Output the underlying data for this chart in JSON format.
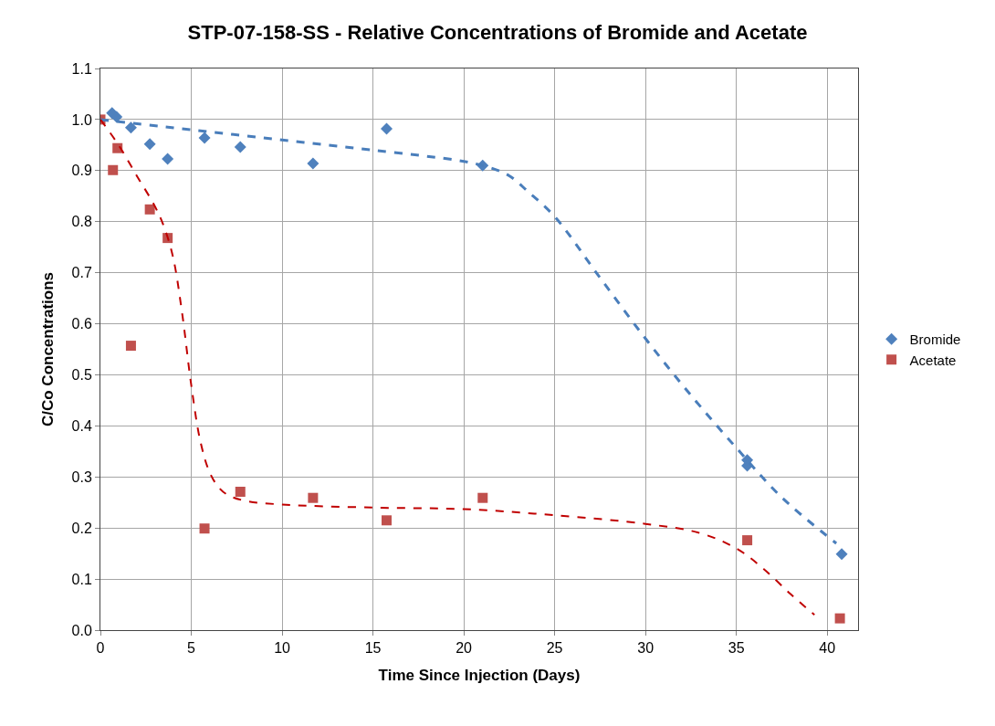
{
  "chart_data": {
    "type": "scatter",
    "title": "STP-07-158-SS - Relative Concentrations of Bromide and Acetate",
    "xlabel": "Time Since Injection (Days)",
    "ylabel": "C/Co Concentrations",
    "xlim": [
      0,
      41.7
    ],
    "xticks": [
      0,
      5,
      10,
      15,
      20,
      25,
      30,
      35,
      40
    ],
    "ylim": [
      0,
      1.1
    ],
    "yticks": [
      {
        "value": 0,
        "label": "0.0"
      },
      0.1,
      0.2,
      0.3,
      0.4,
      0.5,
      0.6,
      0.7,
      0.8,
      0.9,
      {
        "value": 1,
        "label": "1.0"
      },
      1.1
    ],
    "grid": true,
    "legend": "right",
    "series": [
      {
        "name": "Bromide",
        "color": "#4f81bd",
        "marker": "diamond",
        "x": [
          0.64,
          0.89,
          1.68,
          2.72,
          3.7,
          5.73,
          7.7,
          11.7,
          15.75,
          21.04,
          35.6,
          35.6,
          40.8
        ],
        "values": [
          1.013,
          1.005,
          0.984,
          0.952,
          0.923,
          0.964,
          0.946,
          0.914,
          0.982,
          0.91,
          0.333,
          0.322,
          0.149
        ]
      },
      {
        "name": "Acetate",
        "color": "#c0504d",
        "marker": "square",
        "x": [
          0,
          0.69,
          0.94,
          1.68,
          2.72,
          3.7,
          5.73,
          7.7,
          11.7,
          15.75,
          21.04,
          35.6,
          40.7
        ],
        "values": [
          1.0,
          0.901,
          0.944,
          0.557,
          0.824,
          0.768,
          0.199,
          0.271,
          0.259,
          0.215,
          0.259,
          0.176,
          0.023
        ]
      },
      {
        "type": "line",
        "color": "#4a7ebb",
        "line_style": "dashed",
        "marker": "none",
        "x": [
          0,
          5,
          10,
          15,
          20,
          21.5,
          22.5,
          23.5,
          25,
          27.5,
          30,
          32.5,
          35,
          37.5,
          40.5
        ],
        "values": [
          1.0,
          0.98,
          0.96,
          0.94,
          0.918,
          0.905,
          0.89,
          0.86,
          0.81,
          0.69,
          0.571,
          0.46,
          0.357,
          0.26,
          0.17
        ]
      },
      {
        "type": "line",
        "color": "#c00000",
        "line_style": "dashed",
        "marker": "none",
        "x": [
          0,
          1,
          2,
          3,
          3.5,
          4,
          4.5,
          5,
          5.5,
          6,
          6.5,
          7,
          8,
          10,
          15,
          20,
          25,
          30,
          33,
          35,
          36.5,
          38,
          39.3
        ],
        "values": [
          1.0,
          0.95,
          0.89,
          0.83,
          0.79,
          0.73,
          0.62,
          0.48,
          0.37,
          0.31,
          0.28,
          0.265,
          0.253,
          0.246,
          0.24,
          0.237,
          0.225,
          0.208,
          0.19,
          0.16,
          0.12,
          0.07,
          0.03
        ]
      }
    ]
  }
}
